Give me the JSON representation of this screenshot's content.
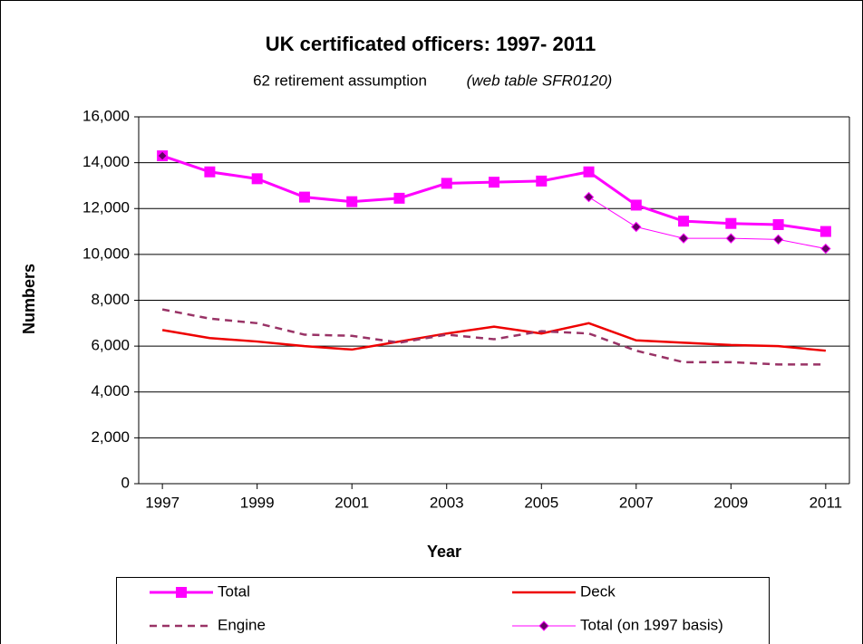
{
  "chart_data": {
    "type": "line",
    "title": "UK certificated officers: 1997- 2011",
    "subtitle": "62 retirement assumption",
    "subtitle_note": "(web table SFR0120)",
    "x_label": "Year",
    "y_label": "Numbers",
    "x": [
      1997,
      1998,
      1999,
      2000,
      2001,
      2002,
      2003,
      2004,
      2005,
      2006,
      2007,
      2008,
      2009,
      2010,
      2011
    ],
    "xlim": [
      1996.5,
      2011.5
    ],
    "xticks": [
      1997,
      1999,
      2001,
      2003,
      2005,
      2007,
      2009,
      2011
    ],
    "ylim": [
      0,
      16000
    ],
    "yticks": [
      0,
      {
        "value": 2000,
        "label": "2,000"
      },
      {
        "value": 4000,
        "label": "4,000"
      },
      {
        "value": 6000,
        "label": "6,000"
      },
      {
        "value": 8000,
        "label": "8,000"
      },
      {
        "value": 10000,
        "label": "10,000"
      },
      {
        "value": 12000,
        "label": "12,000"
      },
      {
        "value": 14000,
        "label": "14,000"
      },
      {
        "value": 16000,
        "label": "16,000"
      }
    ],
    "grid": true,
    "legend": "bottom",
    "series": [
      {
        "name": "Total",
        "color": "#ff00ff",
        "width": 3,
        "marker": "square",
        "dash": false,
        "values": [
          14300,
          13600,
          13300,
          12500,
          12300,
          12450,
          13100,
          13150,
          13200,
          13600,
          12150,
          11450,
          11350,
          11300,
          11000
        ]
      },
      {
        "name": "Deck",
        "color": "#ee0000",
        "width": 2.5,
        "marker": "none",
        "dash": false,
        "values": [
          6700,
          6350,
          6200,
          6000,
          5850,
          6200,
          6550,
          6850,
          6550,
          7000,
          6250,
          6150,
          6050,
          6000,
          5800
        ]
      },
      {
        "name": "Engine",
        "color": "#993366",
        "width": 2.5,
        "marker": "none",
        "dash": true,
        "values": [
          7600,
          7200,
          7000,
          6500,
          6450,
          6150,
          6500,
          6300,
          6650,
          6550,
          5800,
          5300,
          5300,
          5200,
          5200
        ]
      },
      {
        "name": "Total (on 1997 basis)",
        "color": "#ff00ff",
        "width": 1,
        "marker": "diamond",
        "dash": false,
        "values": [
          14300,
          null,
          null,
          null,
          null,
          null,
          null,
          null,
          null,
          12500,
          11200,
          10700,
          10700,
          10650,
          10250
        ]
      }
    ]
  }
}
